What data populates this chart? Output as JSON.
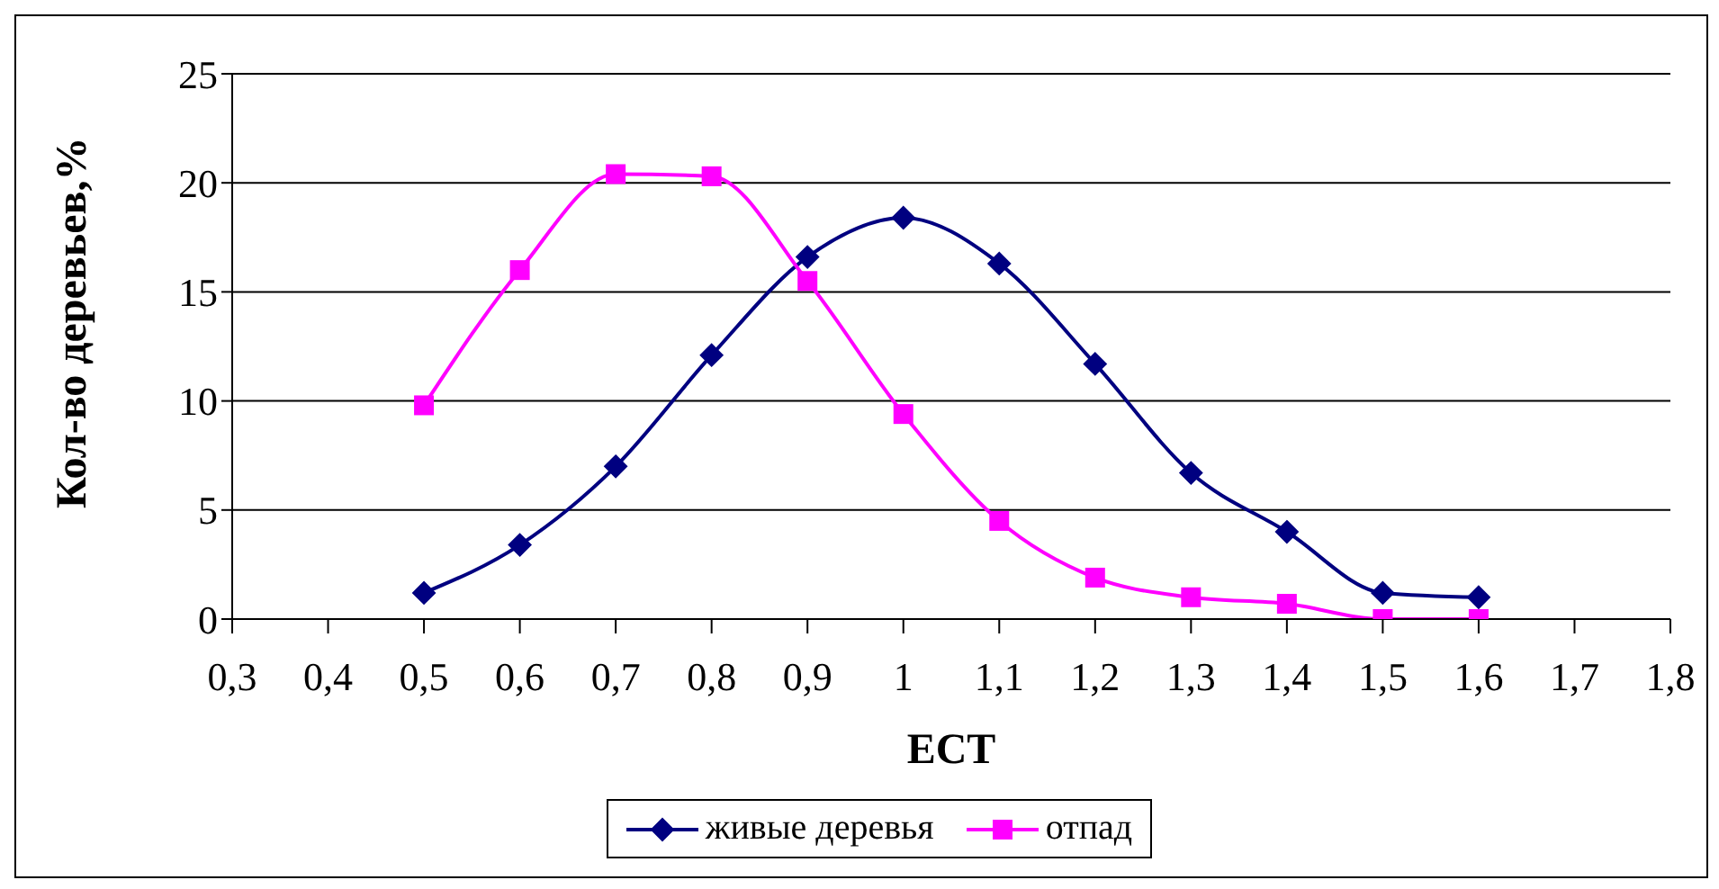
{
  "chart_data": {
    "type": "line",
    "xlabel": "ЕСТ",
    "ylabel": "Кол-во деревьев,%",
    "x": [
      0.5,
      0.6,
      0.7,
      0.8,
      0.9,
      1.0,
      1.1,
      1.2,
      1.3,
      1.4,
      1.5,
      1.6
    ],
    "series": [
      {
        "name": "живые деревья",
        "color": "#000080",
        "marker": "diamond",
        "values": [
          1.2,
          3.4,
          7.0,
          12.1,
          16.6,
          18.4,
          16.3,
          11.7,
          6.7,
          4.0,
          1.2,
          1.0
        ]
      },
      {
        "name": "отпад",
        "color": "#ff00ff",
        "marker": "square",
        "values": [
          9.8,
          16.0,
          20.4,
          20.3,
          15.5,
          9.4,
          4.5,
          1.9,
          1.0,
          0.7,
          0,
          0
        ]
      }
    ],
    "xlim": [
      0.3,
      1.8
    ],
    "xticks": [
      {
        "value": 0.3,
        "label": "0,3"
      },
      {
        "value": 0.4,
        "label": "0,4"
      },
      {
        "value": 0.5,
        "label": "0,5"
      },
      {
        "value": 0.6,
        "label": "0,6"
      },
      {
        "value": 0.7,
        "label": "0,7"
      },
      {
        "value": 0.8,
        "label": "0,8"
      },
      {
        "value": 0.9,
        "label": "0,9"
      },
      {
        "value": 1,
        "label": "1"
      },
      {
        "value": 1.1,
        "label": "1,1"
      },
      {
        "value": 1.2,
        "label": "1,2"
      },
      {
        "value": 1.3,
        "label": "1,3"
      },
      {
        "value": 1.4,
        "label": "1,4"
      },
      {
        "value": 1.5,
        "label": "1,5"
      },
      {
        "value": 1.6,
        "label": "1,6"
      },
      {
        "value": 1.7,
        "label": "1,7"
      },
      {
        "value": 1.8,
        "label": "1,8"
      }
    ],
    "ylim": [
      0,
      25
    ],
    "yticks": [
      0,
      5,
      10,
      15,
      20,
      25
    ],
    "grid": "y",
    "legend": "bottom",
    "line_style": "solid"
  }
}
